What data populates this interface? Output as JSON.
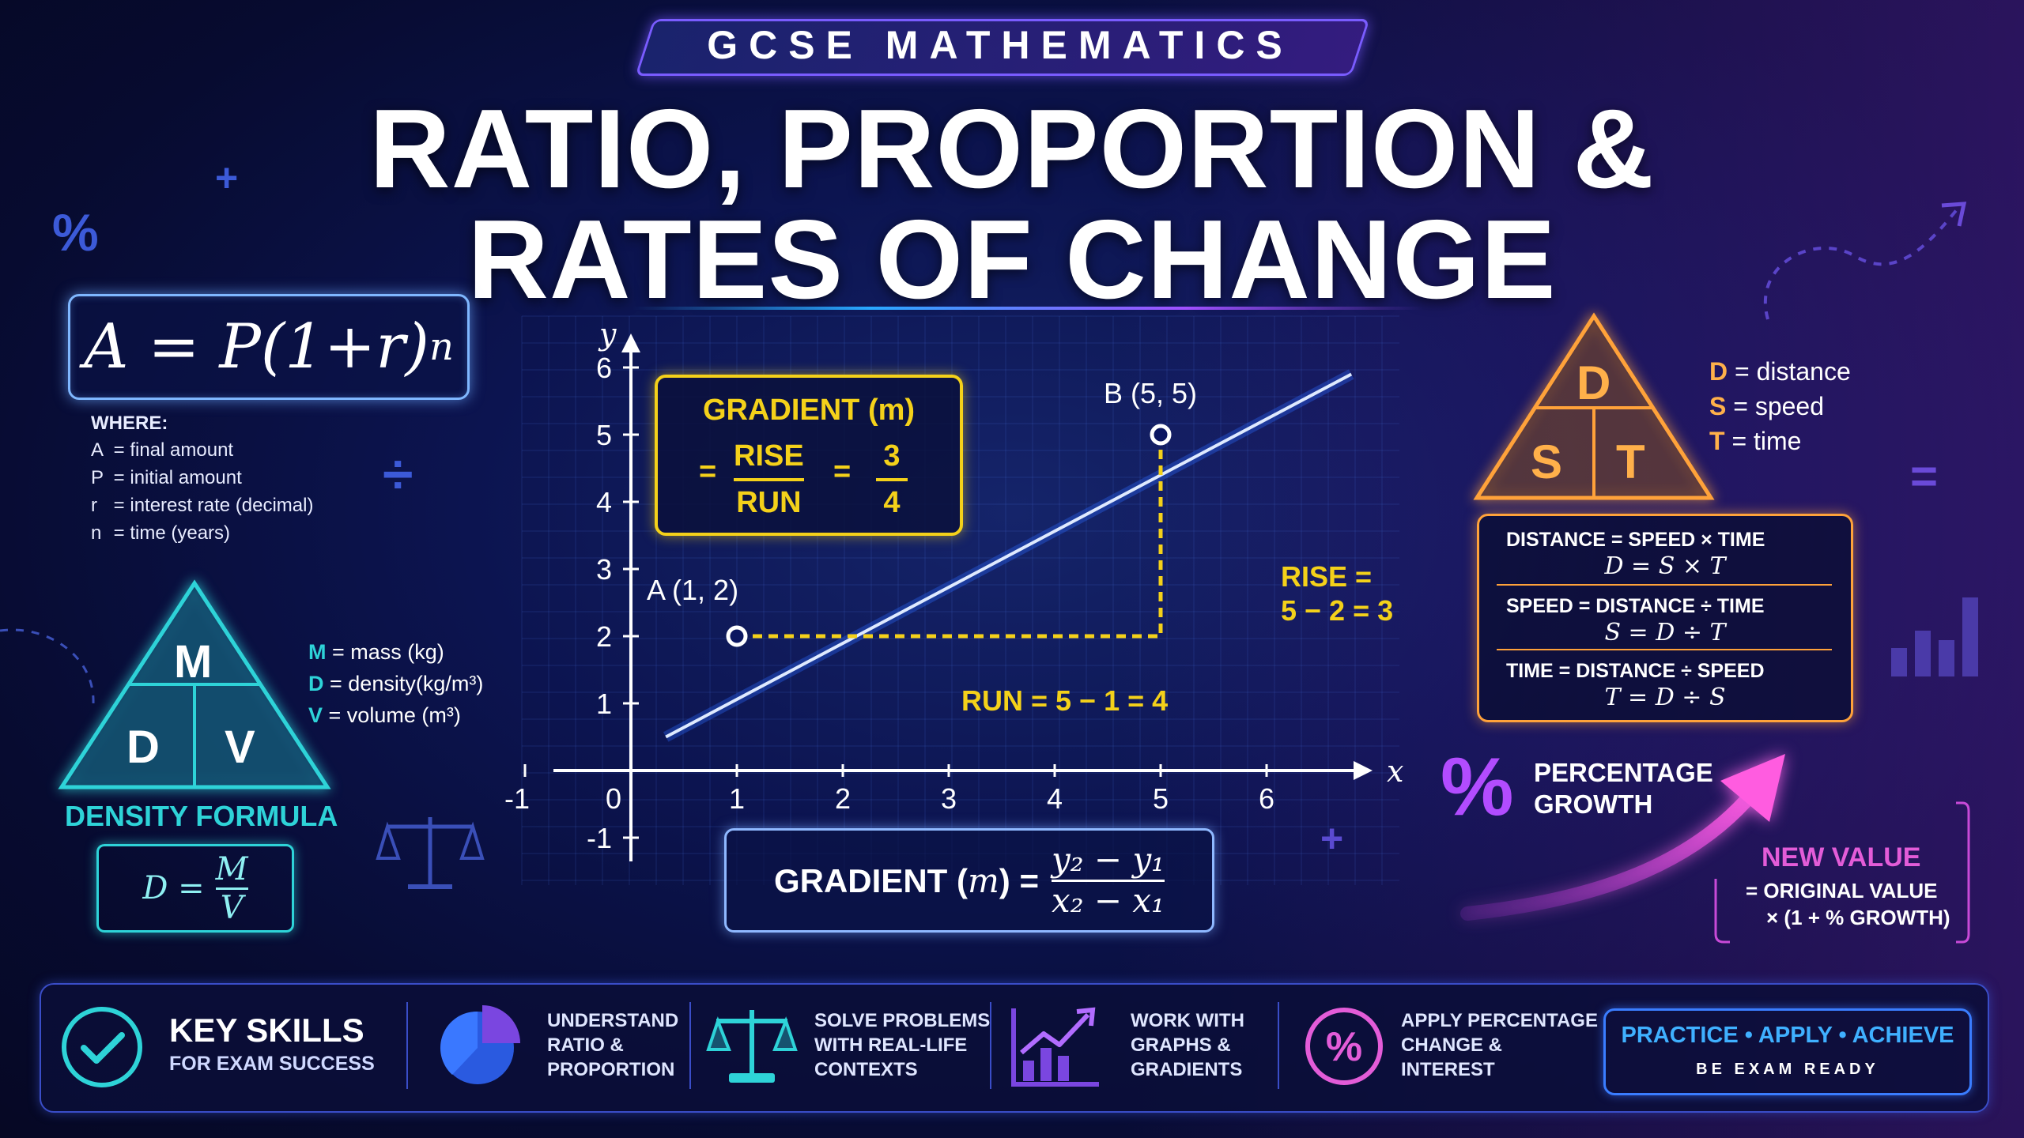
{
  "banner": "GCSE MATHEMATICS",
  "title_line1": "RATIO, PROPORTION &",
  "title_line2": "RATES OF CHANGE",
  "compound": {
    "formula_lhs": "A = P(1+r)",
    "formula_exp": "n",
    "where_title": "WHERE:",
    "where": [
      {
        "k": "A",
        "v": "= final amount"
      },
      {
        "k": "P",
        "v": "= initial amount"
      },
      {
        "k": "r",
        "v": "= interest rate (decimal)"
      },
      {
        "k": "n",
        "v": "= time (years)"
      }
    ]
  },
  "density": {
    "top": "M",
    "left": "D",
    "right": "V",
    "legend": [
      {
        "k": "M",
        "v": "= mass (kg)"
      },
      {
        "k": "D",
        "v": "= density(kg/m³)"
      },
      {
        "k": "V",
        "v": "= volume (m³)"
      }
    ],
    "title": "DENSITY FORMULA",
    "formula_lhs": "D =",
    "num": "M",
    "den": "V"
  },
  "chart_data": {
    "type": "line",
    "xlabel": "x",
    "ylabel": "y",
    "x_ticks": [
      "-1",
      "0",
      "1",
      "2",
      "3",
      "4",
      "5",
      "6"
    ],
    "y_ticks": [
      "-1",
      "1",
      "2",
      "3",
      "4",
      "5",
      "6"
    ],
    "xlim": [
      -1,
      7
    ],
    "ylim": [
      -1,
      6.5
    ],
    "series": [
      {
        "x": [
          0.33,
          6.8
        ],
        "y": [
          0.5,
          5.9
        ]
      }
    ],
    "points": [
      {
        "label": "A (1, 2)",
        "x": 1,
        "y": 2
      },
      {
        "label": "B (5, 5)",
        "x": 5,
        "y": 5
      }
    ]
  },
  "gradient": {
    "title": "GRADIENT (m)",
    "eq1": "=",
    "rise": "RISE",
    "run": "RUN",
    "eq2": "=",
    "num": "3",
    "den": "4",
    "rise_label": [
      "RISE =",
      "5 − 2 = 3"
    ],
    "run_label": "RUN = 5 − 1 = 4",
    "formula_lhs": "GRADIENT (",
    "formula_m": "m",
    "formula_mid": ") =",
    "formula_num": "y₂ − y₁",
    "formula_den": "x₂ − x₁"
  },
  "dst": {
    "top": "D",
    "left": "S",
    "right": "T",
    "legend": [
      {
        "k": "D",
        "v": "= distance"
      },
      {
        "k": "S",
        "v": "= speed"
      },
      {
        "k": "T",
        "v": "= time"
      }
    ],
    "rows": [
      {
        "words": "DISTANCE = SPEED × TIME",
        "formula": "D = S × T"
      },
      {
        "words": "SPEED = DISTANCE ÷ TIME",
        "formula": "S = D ÷ T"
      },
      {
        "words": "TIME = DISTANCE ÷ SPEED",
        "formula": "T = D ÷ S"
      }
    ]
  },
  "percent": {
    "symbol": "%",
    "title": [
      "PERCENTAGE",
      "GROWTH"
    ],
    "new_value": "NEW VALUE",
    "line1": "= ORIGINAL VALUE",
    "line2": "× (1 + % GROWTH)"
  },
  "footer": {
    "key_title": "KEY SKILLS",
    "key_sub": "FOR EXAM SUCCESS",
    "skills": [
      [
        "UNDERSTAND",
        "RATIO &",
        "PROPORTION"
      ],
      [
        "SOLVE PROBLEMS",
        "WITH REAL-LIFE",
        "CONTEXTS"
      ],
      [
        "WORK WITH",
        "GRAPHS &",
        "GRADIENTS"
      ],
      [
        "APPLY PERCENTAGE",
        "CHANGE &",
        "INTEREST"
      ]
    ],
    "practice": "PRACTICE • APPLY • ACHIEVE",
    "exam_ready": "BE EXAM READY"
  },
  "colors": {
    "accent_yellow": "#f4d11a",
    "accent_cyan": "#2ed3d8",
    "accent_orange": "#ffa23a",
    "accent_pink": "#e35cd8",
    "accent_purple": "#b24cff",
    "accent_blue": "#3a7dff"
  },
  "icons": [
    "plus-icon",
    "percent-icon",
    "divide-icon",
    "scales-icon",
    "bar-chart-icon",
    "equals-icon",
    "check-icon",
    "pie-chart-icon",
    "trend-up-icon"
  ]
}
